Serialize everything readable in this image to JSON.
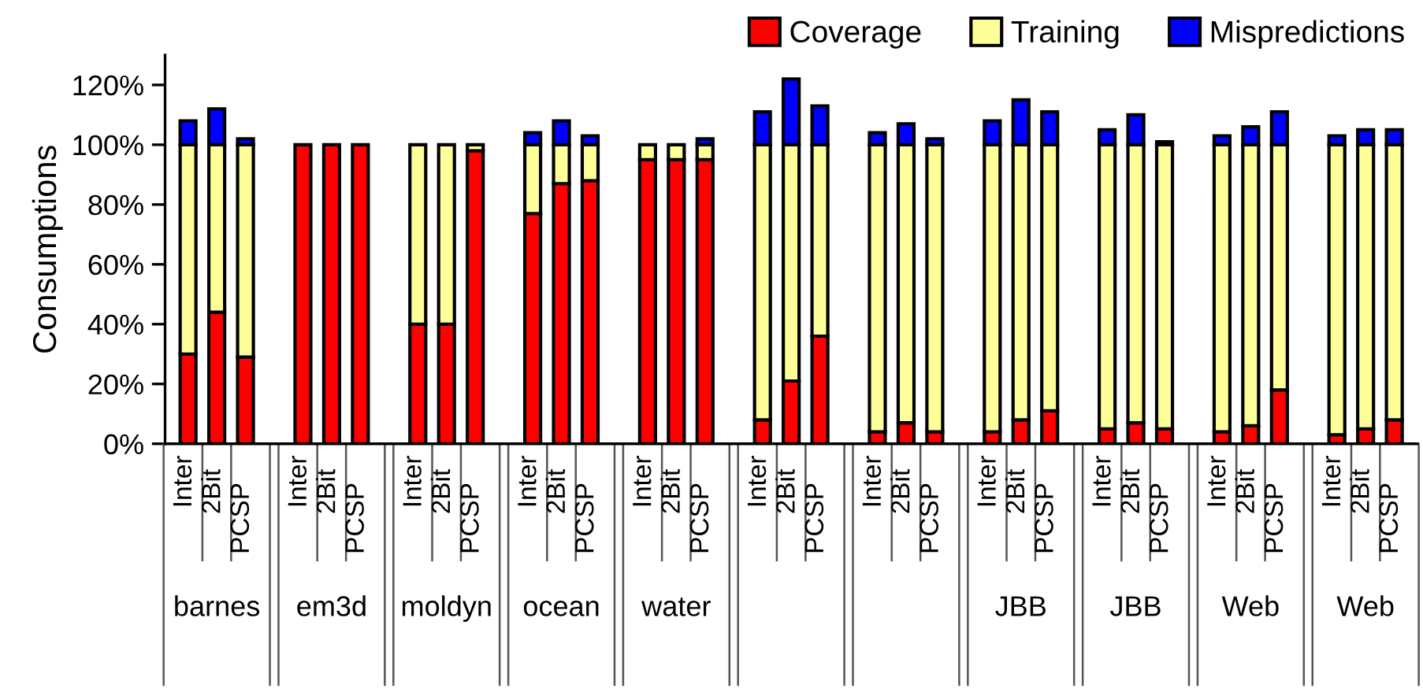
{
  "chart_data": {
    "type": "bar",
    "stacked": true,
    "ylabel": "Consumptions",
    "categories": [
      "Inter",
      "2Bit",
      "PCSP",
      null,
      "Inter",
      "2Bit",
      "PCSP",
      null,
      "Inter",
      "2Bit",
      "PCSP",
      null,
      "Inter",
      "2Bit",
      "PCSP",
      null,
      "Inter",
      "2Bit",
      "PCSP",
      null,
      "Inter",
      "2Bit",
      "PCSP",
      null,
      "Inter",
      "2Bit",
      "PCSP",
      null,
      "Inter",
      "2Bit",
      "PCSP",
      null,
      "Inter",
      "2Bit",
      "PCSP",
      null,
      "Inter",
      "2Bit",
      "PCSP",
      null,
      "Inter",
      "2Bit",
      "PCSP"
    ],
    "annotations": [
      "barnes",
      "em3d",
      "moldyn",
      "ocean",
      "water",
      null,
      null,
      "JBB",
      "JBB",
      "Web",
      "Web"
    ],
    "series": [
      {
        "name": "Coverage",
        "color": "#ff0000",
        "values": [
          30,
          44,
          29,
          null,
          100,
          100,
          100,
          null,
          40,
          40,
          98,
          null,
          77,
          87,
          88,
          null,
          95,
          95,
          95,
          null,
          8,
          21,
          36,
          null,
          4,
          7,
          4,
          null,
          4,
          8,
          11,
          null,
          5,
          7,
          5,
          null,
          4,
          6,
          18,
          null,
          3,
          5,
          8
        ]
      },
      {
        "name": "Training",
        "color": "#ffff99",
        "values": [
          70,
          56,
          71,
          null,
          0,
          0,
          0,
          null,
          60,
          60,
          2,
          null,
          23,
          13,
          12,
          null,
          5,
          5,
          5,
          null,
          92,
          79,
          64,
          null,
          96,
          93,
          96,
          null,
          96,
          92,
          89,
          null,
          95,
          93,
          95,
          null,
          96,
          94,
          82,
          null,
          97,
          95,
          92
        ]
      },
      {
        "name": "Mispredictions",
        "color": "#0000ff",
        "values": [
          8,
          12,
          2,
          null,
          0,
          0,
          0,
          null,
          0,
          0,
          0,
          null,
          4,
          8,
          3,
          null,
          0,
          0,
          2,
          null,
          11,
          22,
          13,
          null,
          4,
          7,
          2,
          null,
          8,
          15,
          11,
          null,
          5,
          10,
          1,
          null,
          3,
          6,
          11,
          null,
          3,
          5,
          5
        ]
      }
    ],
    "ylim": [
      0,
      130
    ],
    "yticks": [
      {
        "value": 0,
        "label": "0%"
      },
      {
        "value": 20,
        "label": "20%"
      },
      {
        "value": 40,
        "label": "40%"
      },
      {
        "value": 60,
        "label": "60%"
      },
      {
        "value": 80,
        "label": "80%"
      },
      {
        "value": 100,
        "label": "100%"
      },
      {
        "value": 120,
        "label": "120%"
      }
    ],
    "grid": false,
    "legend": "top right"
  }
}
